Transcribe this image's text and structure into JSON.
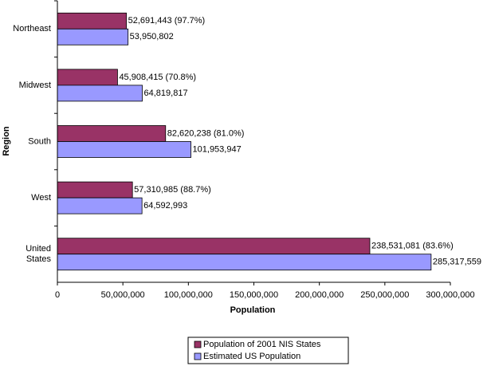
{
  "chart_data": {
    "type": "hbar",
    "x_label": "Population",
    "y_label": "Region",
    "categories": [
      "Northeast",
      "Midwest",
      "South",
      "West",
      "United States"
    ],
    "series": [
      {
        "name": "Population of 2001 NIS States",
        "color": "#993366",
        "values": [
          52691443,
          45908415,
          82620238,
          57310985,
          238531081
        ],
        "value_labels": [
          "52,691,443 (97.7%)",
          "45,908,415 (70.8%)",
          "82,620,238 (81.0%)",
          "57,310,985 (88.7%)",
          "238,531,081 (83.6%)"
        ]
      },
      {
        "name": "Estimated US Population",
        "color": "#9999ff",
        "values": [
          53950802,
          64819817,
          101953947,
          64592993,
          285317559
        ],
        "value_labels": [
          "53,950,802",
          "64,819,817",
          "101,953,947",
          "64,592,993",
          "285,317,559"
        ]
      }
    ],
    "xlim": [
      0,
      300000000
    ],
    "xticks": [
      0,
      {
        "value": 50000000,
        "label": "50,000,000"
      },
      {
        "value": 100000000,
        "label": "100,000,000"
      },
      {
        "value": 150000000,
        "label": "150,000,000"
      },
      {
        "value": 200000000,
        "label": "200,000,000"
      },
      {
        "value": 250000000,
        "label": "250,000,000"
      },
      {
        "value": 300000000,
        "label": "300,000,000"
      }
    ],
    "grid": false,
    "legend": "bottom"
  }
}
